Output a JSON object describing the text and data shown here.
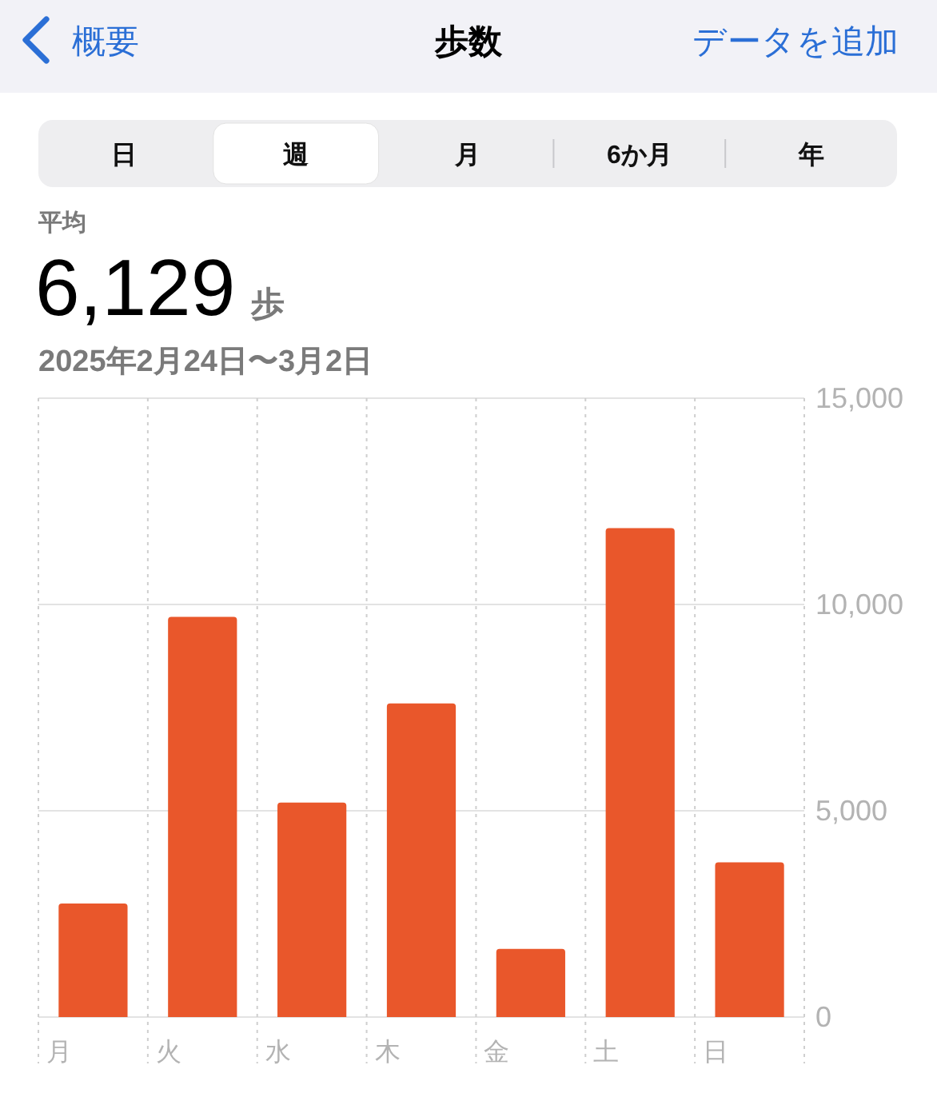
{
  "chart_data": {
    "type": "bar",
    "title": "歩数",
    "subtitle": "2025年2月24日〜3月2日",
    "annotations": [
      "概要",
      "データを追加",
      "日",
      "週",
      "月",
      "6か月",
      "年",
      "平均",
      "6,129",
      "歩"
    ],
    "categories": [
      "月",
      "火",
      "水",
      "木",
      "金",
      "土",
      "日"
    ],
    "values": [
      2750,
      9700,
      5200,
      7600,
      1650,
      11850,
      3750
    ],
    "color": "#e9572b",
    "ylim": [
      0,
      15000
    ],
    "yticks": [
      0,
      {
        "value": 5000,
        "label": "5,000"
      },
      {
        "value": 10000,
        "label": "10,000"
      },
      {
        "value": 15000,
        "label": "15,000"
      }
    ],
    "grid": true
  }
}
